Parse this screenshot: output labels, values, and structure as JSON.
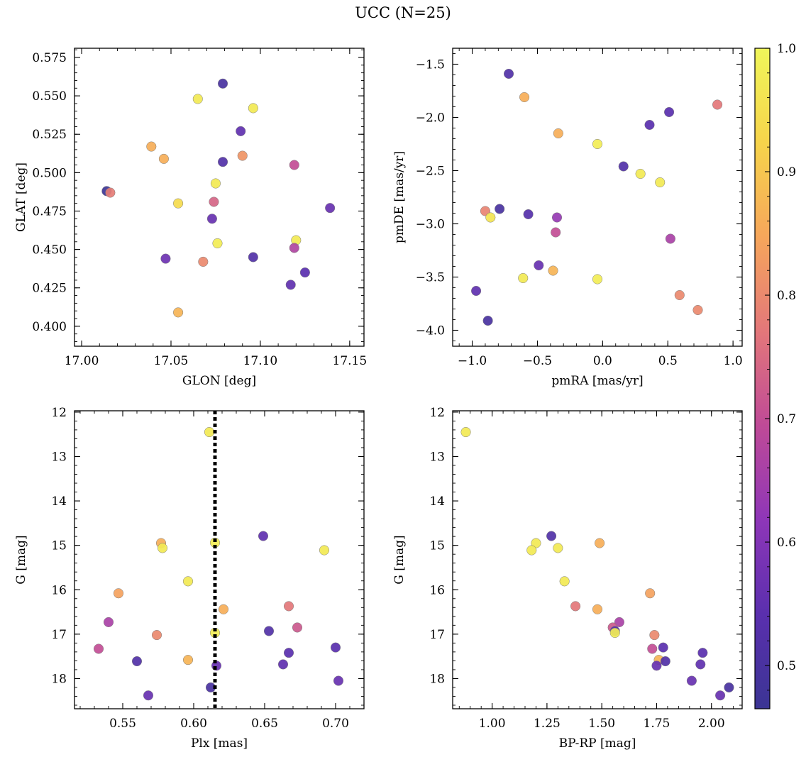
{
  "figure": {
    "title": "UCC (N=25)"
  },
  "colorbar": {
    "min": 0.465,
    "max": 1.0,
    "ticks": [
      0.5,
      0.6,
      0.7,
      0.8,
      0.9,
      1.0
    ],
    "tick_labels": [
      "0.5",
      "0.6",
      "0.7",
      "0.8",
      "0.9",
      "1.0"
    ],
    "colormap": "plasma",
    "colors": [
      "#3b3594",
      "#5a2fae",
      "#8e36b8",
      "#bf4a97",
      "#e3777a",
      "#f6a65b",
      "#f6d44b",
      "#f0f65a"
    ]
  },
  "chart_data": [
    {
      "type": "scatter",
      "xlabel": "GLON [deg]",
      "ylabel": "GLAT [deg]",
      "xlim": [
        16.996,
        17.158
      ],
      "ylim": [
        0.387,
        0.581
      ],
      "xticks": [
        17.0,
        17.05,
        17.1,
        17.15
      ],
      "xtick_labels": [
        "17.00",
        "17.05",
        "17.10",
        "17.15"
      ],
      "yticks": [
        0.4,
        0.425,
        0.45,
        0.475,
        0.5,
        0.525,
        0.55,
        0.575
      ],
      "ytick_labels": [
        "0.400",
        "0.425",
        "0.450",
        "0.475",
        "0.500",
        "0.525",
        "0.550",
        "0.575"
      ],
      "x": [
        17.079,
        17.065,
        17.096,
        17.089,
        17.039,
        17.046,
        17.09,
        17.079,
        17.119,
        17.014,
        17.016,
        17.075,
        17.054,
        17.074,
        17.073,
        17.139,
        17.12,
        17.076,
        17.119,
        17.047,
        17.096,
        17.068,
        17.125,
        17.117,
        17.054
      ],
      "y": [
        0.558,
        0.548,
        0.542,
        0.527,
        0.517,
        0.509,
        0.511,
        0.507,
        0.505,
        0.488,
        0.487,
        0.493,
        0.48,
        0.481,
        0.47,
        0.477,
        0.456,
        0.454,
        0.451,
        0.444,
        0.445,
        0.442,
        0.435,
        0.427,
        0.409
      ],
      "color": [
        0.5,
        0.97,
        0.97,
        0.55,
        0.86,
        0.86,
        0.82,
        0.52,
        0.7,
        0.47,
        0.78,
        0.97,
        0.94,
        0.74,
        0.56,
        0.56,
        0.97,
        0.98,
        0.67,
        0.57,
        0.52,
        0.8,
        0.54,
        0.55,
        0.87
      ]
    },
    {
      "type": "scatter",
      "xlabel": "pmRA [mas/yr]",
      "ylabel": "pmDE [mas/yr]",
      "xlim": [
        -1.15,
        1.07
      ],
      "ylim": [
        -4.15,
        -1.35
      ],
      "xticks": [
        -1.0,
        -0.5,
        0.0,
        0.5,
        1.0
      ],
      "xtick_labels": [
        "−1.0",
        "−0.5",
        "0.0",
        "0.5",
        "1.0"
      ],
      "yticks": [
        -4.0,
        -3.5,
        -3.0,
        -2.5,
        -2.0,
        -1.5
      ],
      "ytick_labels": [
        "−4.0",
        "−3.5",
        "−3.0",
        "−2.5",
        "−2.0",
        "−1.5"
      ],
      "x": [
        -0.72,
        -0.6,
        0.88,
        0.51,
        0.36,
        -0.34,
        -0.04,
        0.16,
        0.29,
        0.44,
        -0.9,
        -0.79,
        -0.57,
        -0.86,
        -0.35,
        -0.36,
        0.52,
        -0.49,
        -0.38,
        -0.61,
        -0.04,
        0.59,
        0.73,
        -0.97,
        -0.88
      ],
      "y": [
        -1.59,
        -1.81,
        -1.88,
        -1.95,
        -2.07,
        -2.15,
        -2.25,
        -2.46,
        -2.53,
        -2.61,
        -2.88,
        -2.86,
        -2.91,
        -2.94,
        -2.94,
        -3.08,
        -3.14,
        -3.39,
        -3.44,
        -3.51,
        -3.52,
        -3.67,
        -3.81,
        -3.63,
        -3.91
      ],
      "color": [
        0.52,
        0.86,
        0.77,
        0.54,
        0.54,
        0.86,
        0.98,
        0.52,
        0.97,
        0.97,
        0.79,
        0.5,
        0.53,
        0.96,
        0.63,
        0.7,
        0.66,
        0.56,
        0.87,
        0.97,
        0.98,
        0.8,
        0.8,
        0.55,
        0.5
      ]
    },
    {
      "type": "scatter",
      "xlabel": "Plx [mas]",
      "ylabel": "G [mag]",
      "xlim": [
        0.516,
        0.72
      ],
      "ylim": [
        18.68,
        11.97
      ],
      "xticks": [
        0.55,
        0.6,
        0.65,
        0.7
      ],
      "xtick_labels": [
        "0.55",
        "0.60",
        "0.65",
        "0.70"
      ],
      "yticks": [
        12,
        13,
        14,
        15,
        16,
        17,
        18
      ],
      "ytick_labels": [
        "12",
        "13",
        "14",
        "15",
        "16",
        "17",
        "18"
      ],
      "vline": 0.615,
      "x": [
        0.611,
        0.577,
        0.578,
        0.649,
        0.615,
        0.692,
        0.596,
        0.547,
        0.621,
        0.667,
        0.54,
        0.673,
        0.653,
        0.574,
        0.615,
        0.533,
        0.596,
        0.7,
        0.667,
        0.56,
        0.616,
        0.663,
        0.702,
        0.612,
        0.568
      ],
      "y": [
        12.45,
        14.95,
        15.06,
        14.79,
        14.94,
        15.11,
        15.81,
        16.08,
        16.44,
        16.37,
        16.73,
        16.85,
        16.93,
        17.02,
        16.97,
        17.33,
        17.58,
        17.3,
        17.42,
        17.61,
        17.71,
        17.68,
        18.05,
        18.2,
        18.38
      ],
      "color": [
        0.97,
        0.86,
        0.97,
        0.55,
        0.98,
        0.97,
        0.97,
        0.84,
        0.86,
        0.77,
        0.66,
        0.72,
        0.52,
        0.8,
        0.98,
        0.7,
        0.87,
        0.54,
        0.54,
        0.52,
        0.56,
        0.55,
        0.56,
        0.5,
        0.56
      ]
    },
    {
      "type": "scatter",
      "xlabel": "BP-RP [mag]",
      "ylabel": "G [mag]",
      "xlim": [
        0.82,
        2.14
      ],
      "ylim": [
        18.68,
        11.97
      ],
      "xticks": [
        1.0,
        1.25,
        1.5,
        1.75,
        2.0
      ],
      "xtick_labels": [
        "1.00",
        "1.25",
        "1.50",
        "1.75",
        "2.00"
      ],
      "yticks": [
        12,
        13,
        14,
        15,
        16,
        17,
        18
      ],
      "ytick_labels": [
        "12",
        "13",
        "14",
        "15",
        "16",
        "17",
        "18"
      ],
      "x": [
        0.88,
        1.27,
        1.2,
        1.18,
        1.3,
        1.49,
        1.33,
        1.72,
        1.38,
        1.48,
        1.58,
        1.55,
        1.56,
        1.56,
        1.74,
        1.73,
        1.78,
        1.76,
        1.96,
        1.79,
        1.75,
        1.95,
        1.91,
        2.08,
        2.04
      ],
      "y": [
        12.45,
        14.79,
        14.95,
        15.11,
        15.06,
        14.95,
        15.81,
        16.08,
        16.37,
        16.44,
        16.73,
        16.85,
        16.93,
        16.97,
        17.02,
        17.33,
        17.3,
        17.58,
        17.42,
        17.61,
        17.71,
        17.68,
        18.05,
        18.2,
        18.38
      ],
      "color": [
        0.97,
        0.52,
        0.97,
        0.97,
        0.97,
        0.86,
        0.97,
        0.84,
        0.77,
        0.86,
        0.66,
        0.72,
        0.52,
        0.98,
        0.8,
        0.7,
        0.54,
        0.87,
        0.54,
        0.52,
        0.56,
        0.55,
        0.56,
        0.5,
        0.56
      ]
    }
  ]
}
